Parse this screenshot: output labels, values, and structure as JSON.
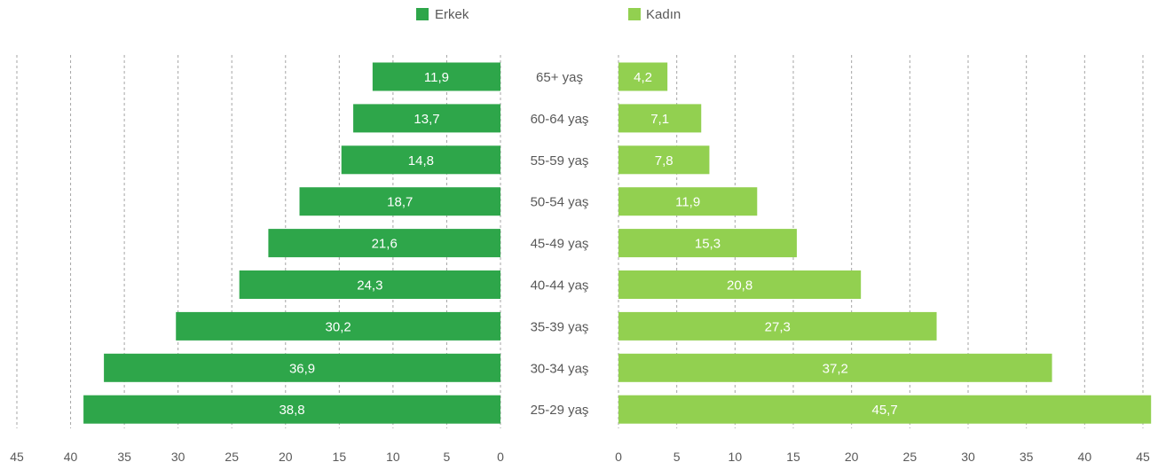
{
  "chart_data": {
    "type": "bar",
    "orientation": "horizontal",
    "layout": "population-pyramid",
    "categories": [
      "65+ yaş",
      "60-64 yaş",
      "55-59 yaş",
      "50-54 yaş",
      "45-49 yaş",
      "40-44 yaş",
      "35-39 yaş",
      "30-34 yaş",
      "25-29 yaş"
    ],
    "series": [
      {
        "name": "Erkek",
        "color": "#2ea64a",
        "values": [
          11.9,
          13.7,
          14.8,
          18.7,
          21.6,
          24.3,
          30.2,
          36.9,
          38.8
        ],
        "labels": [
          "11,9",
          "13,7",
          "14,8",
          "18,7",
          "21,6",
          "24,3",
          "30,2",
          "36,9",
          "38,8"
        ]
      },
      {
        "name": "Kadın",
        "color": "#92d050",
        "values": [
          4.2,
          7.1,
          7.8,
          11.9,
          15.3,
          20.8,
          27.3,
          37.2,
          45.7
        ],
        "labels": [
          "4,2",
          "7,1",
          "7,8",
          "11,9",
          "15,3",
          "20,8",
          "27,3",
          "37,2",
          "45,7"
        ]
      }
    ],
    "xlim": [
      0,
      45
    ],
    "ticks": [
      0,
      5,
      10,
      15,
      20,
      25,
      30,
      35,
      40,
      45
    ],
    "grid": true,
    "legend": "top-center"
  }
}
